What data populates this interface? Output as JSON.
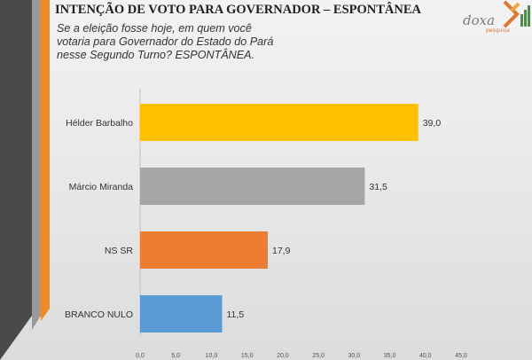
{
  "header": {
    "title": "INTENÇÃO DE VOTO PARA GOVERNADOR – ESPONTÂNEA",
    "question": "Se a eleição fosse hoje, em quem você votaria para Governador do Estado do Pará nesse Segundo Turno? ESPONTÂNEA."
  },
  "logo": {
    "name": "doxa",
    "tagline": "pesquisa",
    "icon": "doxa-logo-icon"
  },
  "colors": {
    "stripe_dark": "#4a4a4a",
    "stripe_gray": "#9a9a9a",
    "stripe_orange": "#f08a24"
  },
  "chart_data": {
    "type": "bar",
    "orientation": "horizontal",
    "categories": [
      "Hélder Barbalho",
      "Márcio Miranda",
      "NS SR",
      "BRANCO NULO"
    ],
    "values": [
      39.0,
      31.5,
      17.9,
      11.5
    ],
    "value_labels": [
      "39,0",
      "31,5",
      "17,9",
      "11,5"
    ],
    "bar_colors": [
      "#ffc000",
      "#a6a6a6",
      "#ed7d31",
      "#5b9bd5"
    ],
    "xlim": [
      0,
      45
    ],
    "x_ticks": [
      "0,0",
      "5,0",
      "10,0",
      "15,0",
      "20,0",
      "25,0",
      "30,0",
      "35,0",
      "40,0",
      "45,0"
    ],
    "grid": false,
    "legend": false
  }
}
